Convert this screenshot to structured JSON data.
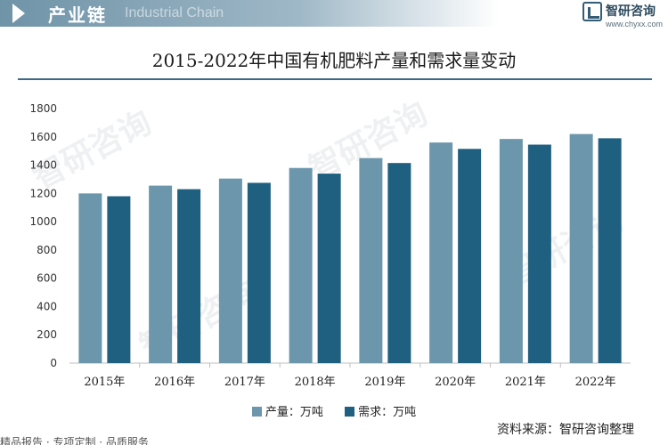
{
  "header": {
    "section_title": "产业链",
    "section_sub": "Industrial Chain",
    "brand_name": "智研咨询",
    "brand_url": "www.chyxx.com"
  },
  "watermark": "智研咨询",
  "footer": {
    "source": "资料来源：智研咨询整理",
    "bottom_text": "精品报告 · 专项定制 · 品质服务"
  },
  "colors": {
    "production": "#6b96ab",
    "demand": "#1f5f80",
    "rule": "#3c6a86"
  },
  "chart_data": {
    "type": "bar",
    "title": "2015-2022年中国有机肥料产量和需求量变动",
    "categories": [
      "2015年",
      "2016年",
      "2017年",
      "2018年",
      "2019年",
      "2020年",
      "2021年",
      "2022年"
    ],
    "series": [
      {
        "name": "产量：万吨",
        "values": [
          1200,
          1255,
          1305,
          1380,
          1450,
          1560,
          1585,
          1620
        ]
      },
      {
        "name": "需求：万吨",
        "values": [
          1180,
          1230,
          1275,
          1340,
          1415,
          1515,
          1545,
          1590
        ]
      }
    ],
    "yticks": [
      0,
      200,
      400,
      600,
      800,
      1000,
      1200,
      1400,
      1600,
      1800
    ],
    "ylim": [
      0,
      1800
    ],
    "grid": false,
    "legend_position": "bottom"
  }
}
